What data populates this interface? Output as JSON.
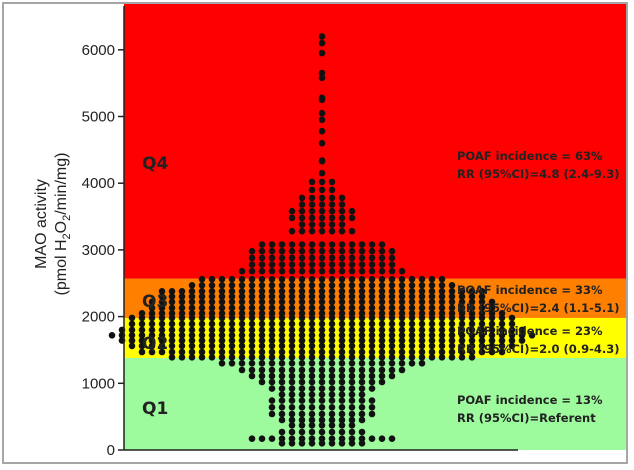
{
  "chart_data": {
    "type": "scatter",
    "subtype": "beeswarm",
    "ylabel_line1": "MAO activity",
    "ylabel_line2_prefix": "(pmol H",
    "ylabel_sub1": "2",
    "ylabel_line2_mid": "O",
    "ylabel_sub2": "2",
    "ylabel_line2_suffix": "/min/mg)",
    "ylim": [
      0,
      6300
    ],
    "yticks": [
      0,
      1000,
      2000,
      3000,
      4000,
      5000,
      6000
    ],
    "ytick_labels": [
      "0",
      "1000",
      "2000",
      "3000",
      "4000",
      "5000",
      "6000"
    ],
    "grid": false,
    "point_color": "#111111",
    "quartiles": [
      {
        "label": "Q1",
        "from": 0,
        "to": 1380,
        "color": "#9dfa9d",
        "note_line1": "POAF incidence = 13%",
        "note_line2": "RR (95%CI)=Referent"
      },
      {
        "label": "Q2",
        "from": 1380,
        "to": 1980,
        "color": "#ffff00",
        "note_line1": "POAF incidence = 23%",
        "note_line2": "RR (95%CI)=2.0 (0.9-4.3)"
      },
      {
        "label": "Q3",
        "from": 1980,
        "to": 2570,
        "color": "#ff7f00",
        "note_line1": "POAF incidence = 33%",
        "note_line2": "RR (95%CI)=2.4 (1.1-5.1)"
      },
      {
        "label": "Q4",
        "from": 2570,
        "to": 6300,
        "color": "#ff0000",
        "note_line1": "POAF incidence = 63%",
        "note_line2": "RR (95%CI)=4.8 (2.4-9.3)"
      }
    ],
    "distribution_rows": [
      [
        6200,
        1
      ],
      [
        6100,
        1
      ],
      [
        5950,
        1
      ],
      [
        5650,
        1
      ],
      [
        5580,
        1
      ],
      [
        5280,
        1
      ],
      [
        5250,
        1
      ],
      [
        5050,
        1
      ],
      [
        4950,
        1
      ],
      [
        4780,
        1
      ],
      [
        4600,
        1
      ],
      [
        4340,
        1
      ],
      [
        4330,
        1
      ],
      [
        4150,
        1
      ],
      [
        4020,
        3
      ],
      [
        3900,
        3
      ],
      [
        3780,
        5
      ],
      [
        3680,
        5
      ],
      [
        3580,
        7
      ],
      [
        3480,
        7
      ],
      [
        3380,
        5
      ],
      [
        3280,
        7
      ],
      [
        3080,
        13
      ],
      [
        2980,
        15
      ],
      [
        2880,
        15
      ],
      [
        2780,
        15
      ],
      [
        2680,
        17
      ],
      [
        2560,
        25
      ],
      [
        2470,
        27
      ],
      [
        2380,
        33
      ],
      [
        2300,
        33
      ],
      [
        2220,
        35
      ],
      [
        2130,
        35
      ],
      [
        2050,
        37
      ],
      [
        1980,
        39
      ],
      [
        1890,
        39
      ],
      [
        1800,
        41
      ],
      [
        1720,
        43
      ],
      [
        1640,
        41
      ],
      [
        1560,
        39
      ],
      [
        1470,
        37
      ],
      [
        1390,
        31
      ],
      [
        1300,
        21
      ],
      [
        1200,
        17
      ],
      [
        1110,
        15
      ],
      [
        1020,
        13
      ],
      [
        920,
        11
      ],
      [
        830,
        9
      ],
      [
        740,
        11
      ],
      [
        640,
        11
      ],
      [
        540,
        11
      ],
      [
        450,
        9
      ],
      [
        370,
        7
      ],
      [
        270,
        9
      ],
      [
        170,
        15
      ],
      [
        100,
        9
      ]
    ]
  }
}
